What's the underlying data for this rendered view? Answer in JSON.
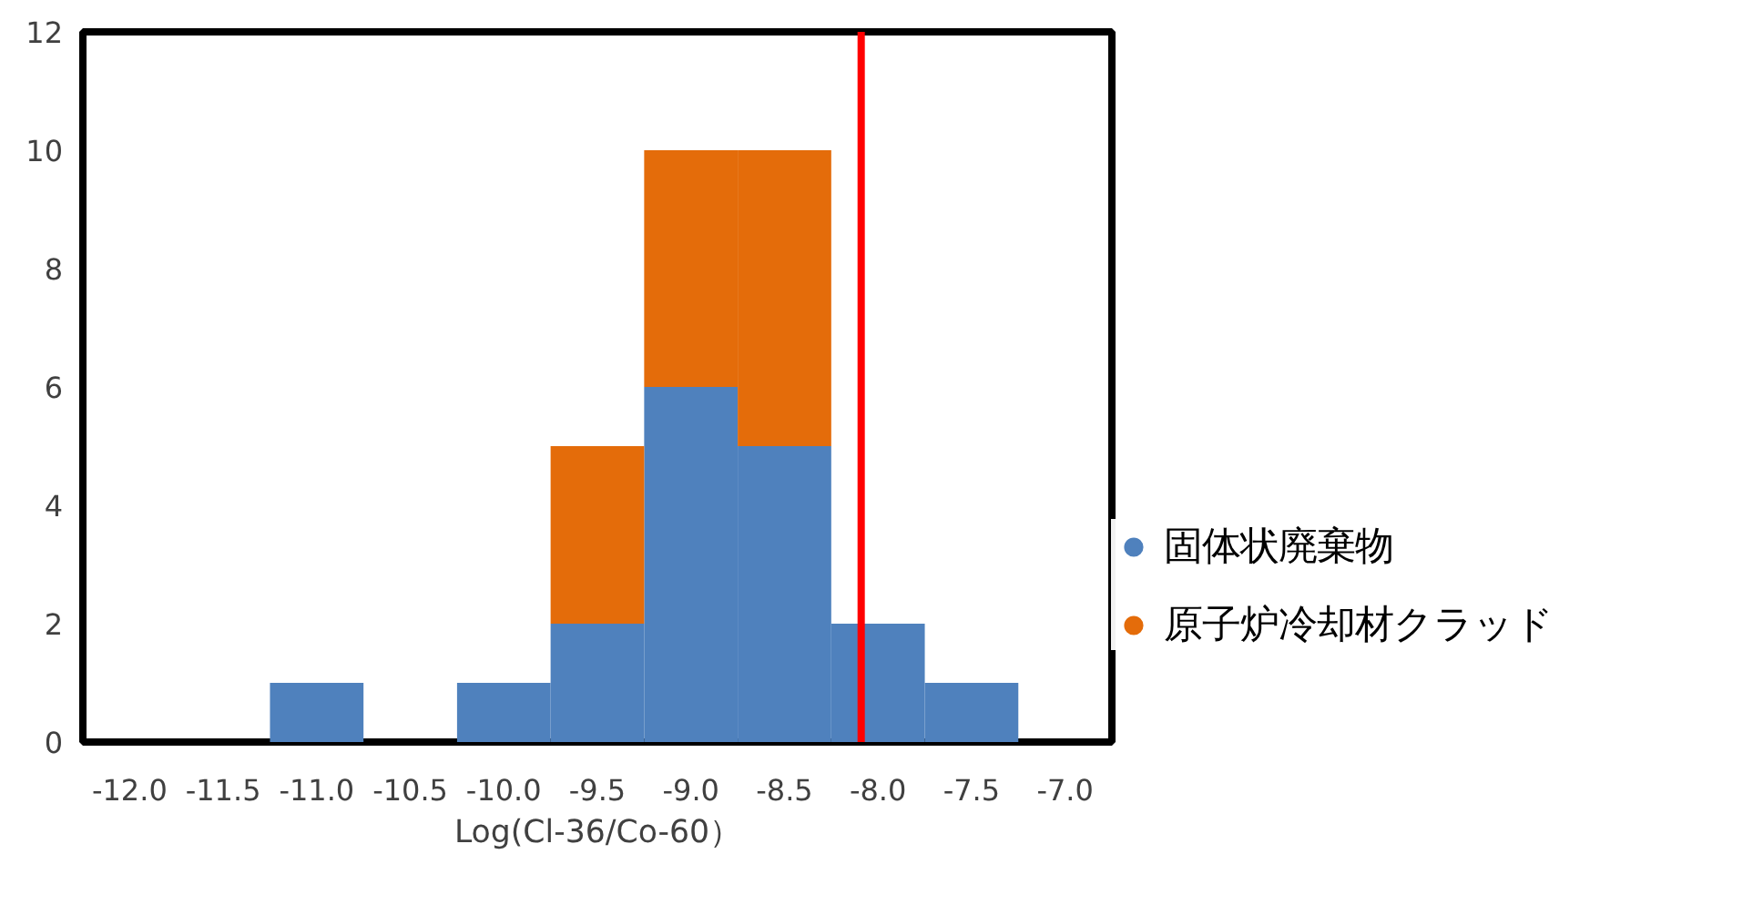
{
  "chart_data": {
    "type": "bar",
    "xlabel": "Log(Cl-36/Co-60）",
    "x": [
      -12.0,
      -11.5,
      -11.0,
      -10.5,
      -10.0,
      -9.5,
      -9.0,
      -8.5,
      -8.0,
      -7.5,
      -7.0
    ],
    "stacked": true,
    "series": [
      {
        "name": "固体状廃棄物",
        "color": "#4f81bd",
        "values": [
          0,
          0,
          1,
          0,
          1,
          2,
          6,
          5,
          2,
          1,
          0
        ]
      },
      {
        "name": "原子炉冷却材クラッド",
        "color": "#e46c0a",
        "values": [
          0,
          0,
          0,
          0,
          0,
          3,
          4,
          5,
          0,
          0,
          0
        ]
      }
    ],
    "xlim": [
      -12.25,
      -6.75
    ],
    "xticks": [
      {
        "value": -12.0,
        "label": "-12.0"
      },
      {
        "value": -11.5,
        "label": "-11.5"
      },
      {
        "value": -11.0,
        "label": "-11.0"
      },
      {
        "value": -10.5,
        "label": "-10.5"
      },
      {
        "value": -10.0,
        "label": "-10.0"
      },
      {
        "value": -9.5,
        "label": "-9.5"
      },
      {
        "value": -9.0,
        "label": "-9.0"
      },
      {
        "value": -8.5,
        "label": "-8.5"
      },
      {
        "value": -8.0,
        "label": "-8.0"
      },
      {
        "value": -7.5,
        "label": "-7.5"
      },
      {
        "value": -7.0,
        "label": "-7.0"
      }
    ],
    "ylim": [
      0,
      12
    ],
    "yticks": [
      0,
      2,
      4,
      6,
      8,
      10,
      12
    ],
    "ref_lines": [
      {
        "axis": "x",
        "value": -8.09,
        "color": "#ff0000"
      }
    ],
    "grid": false,
    "legend": "right"
  }
}
